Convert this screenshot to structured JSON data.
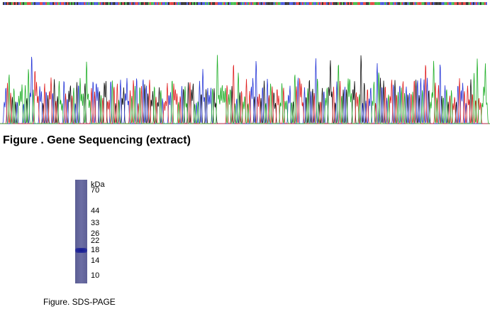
{
  "sequencing": {
    "title": "Figure . Gene Sequencing (extract)",
    "base_colors": {
      "A": "#22b02a",
      "C": "#2a3ad8",
      "G": "#111111",
      "T": "#e02020"
    }
  },
  "gel": {
    "unit": "kDa",
    "markers": [
      {
        "label": "70",
        "kda": 70
      },
      {
        "label": "44",
        "kda": 44
      },
      {
        "label": "33",
        "kda": 33
      },
      {
        "label": "26",
        "kda": 26
      },
      {
        "label": "22",
        "kda": 22
      },
      {
        "label": "18",
        "kda": 18
      },
      {
        "label": "14",
        "kda": 14
      },
      {
        "label": "10",
        "kda": 10
      }
    ],
    "band_kda": 18,
    "lane_color": "#6668a0",
    "band_color": "#1a1f8f",
    "caption": "Figure. SDS-PAGE"
  }
}
